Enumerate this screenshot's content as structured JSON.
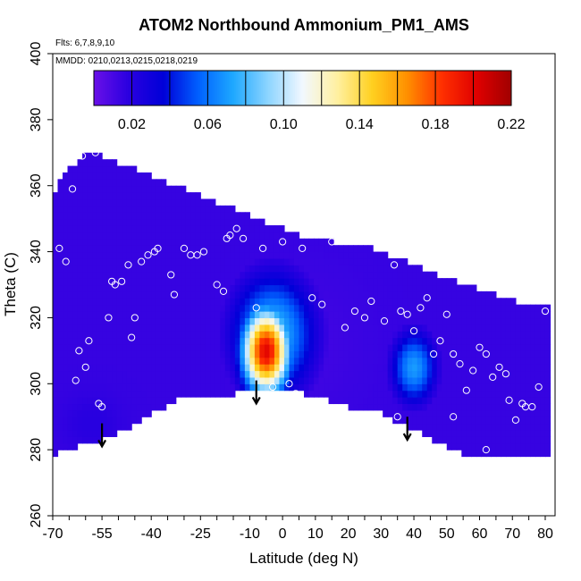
{
  "chart_data": {
    "type": "heatmap",
    "title": "ATOM2 Northbound Ammonium_PM1_AMS",
    "flights_note": "Flts: 6,7,8,9,10",
    "dates_note": "MMDD: 0210,0213,0215,0218,0219",
    "xlabel": "Latitude (deg N)",
    "ylabel": "Theta (C)",
    "xlim": [
      -70,
      83
    ],
    "ylim": [
      260,
      400
    ],
    "x_tick_labels": [
      -70,
      -55,
      -40,
      -25,
      -10,
      0,
      10,
      20,
      30,
      40,
      50,
      60,
      70,
      80
    ],
    "x_minor_ticks": [
      -70,
      -65,
      -60,
      -55,
      -50,
      -45,
      -40,
      -35,
      -30,
      -25,
      -20,
      -15,
      -10,
      -5,
      0,
      5,
      10,
      15,
      20,
      25,
      30,
      35,
      40,
      45,
      50,
      55,
      60,
      65,
      70,
      75,
      80
    ],
    "y_ticks": [
      260,
      280,
      300,
      320,
      340,
      360,
      380,
      400
    ],
    "colorbar": {
      "range": [
        0.0,
        0.22
      ],
      "tick_values": [
        0.02,
        0.06,
        0.1,
        0.14,
        0.18,
        0.22
      ],
      "tick_labels": [
        "0.02",
        "0.06",
        "0.10",
        "0.14",
        "0.18",
        "0.22"
      ],
      "colors": [
        "#6a10e8",
        "#2a00e0",
        "#0000d8",
        "#0060ff",
        "#1ea8ff",
        "#8cd4ff",
        "#f2f8ff",
        "#fff0a0",
        "#ffd020",
        "#ff9000",
        "#ff3000",
        "#e00000",
        "#a00000"
      ]
    },
    "background_value": 0.015,
    "base_surface": {
      "lat": [
        -72,
        -66,
        -52,
        -38,
        -30,
        -20,
        -10,
        0,
        10,
        20,
        30,
        42,
        50,
        56,
        80
      ],
      "theta": [
        277,
        280,
        284,
        292,
        296,
        296,
        298,
        299,
        296,
        293,
        291,
        285,
        281,
        278,
        278
      ]
    },
    "top_surface": {
      "lat": [
        -72,
        -68,
        -60,
        -55,
        -45,
        -35,
        -25,
        -15,
        -5,
        5,
        15,
        25,
        35,
        45,
        55,
        65,
        75,
        82
      ],
      "theta": [
        348,
        362,
        370,
        369,
        365,
        361,
        357,
        353,
        349,
        345,
        343,
        342,
        338,
        334,
        330,
        327,
        324,
        323
      ]
    },
    "features": [
      {
        "name": "high ammonium plume",
        "lat_range": [
          -12,
          8
        ],
        "theta_range": [
          296,
          328
        ],
        "peak": 0.2
      },
      {
        "name": "plume edge",
        "lat_range": [
          -18,
          12
        ],
        "theta_range": [
          294,
          332
        ],
        "value": 0.08
      },
      {
        "name": "low layer",
        "lat_range": [
          -10,
          30
        ],
        "theta_range": [
          288,
          335
        ],
        "value": 0.02
      },
      {
        "name": "northern pocket",
        "lat_range": [
          32,
          48
        ],
        "theta_range": [
          292,
          318
        ],
        "value": 0.07
      },
      {
        "name": "southern low",
        "lat_range": [
          -66,
          -45
        ],
        "theta_range": [
          280,
          296
        ],
        "value": 0.03
      }
    ],
    "observations": [
      {
        "lat": -68,
        "theta": 341
      },
      {
        "lat": -66,
        "theta": 337
      },
      {
        "lat": -64,
        "theta": 359
      },
      {
        "lat": -63,
        "theta": 301
      },
      {
        "lat": -62,
        "theta": 310
      },
      {
        "lat": -61,
        "theta": 369
      },
      {
        "lat": -60,
        "theta": 305
      },
      {
        "lat": -59,
        "theta": 313
      },
      {
        "lat": -57,
        "theta": 370
      },
      {
        "lat": -56,
        "theta": 294
      },
      {
        "lat": -55,
        "theta": 293
      },
      {
        "lat": -53,
        "theta": 320
      },
      {
        "lat": -52,
        "theta": 331
      },
      {
        "lat": -51,
        "theta": 330
      },
      {
        "lat": -49,
        "theta": 331
      },
      {
        "lat": -47,
        "theta": 336
      },
      {
        "lat": -46,
        "theta": 314
      },
      {
        "lat": -45,
        "theta": 320
      },
      {
        "lat": -43,
        "theta": 337
      },
      {
        "lat": -41,
        "theta": 339
      },
      {
        "lat": -39,
        "theta": 340
      },
      {
        "lat": -38,
        "theta": 341
      },
      {
        "lat": -34,
        "theta": 333
      },
      {
        "lat": -33,
        "theta": 327
      },
      {
        "lat": -30,
        "theta": 341
      },
      {
        "lat": -28,
        "theta": 339
      },
      {
        "lat": -26,
        "theta": 339
      },
      {
        "lat": -24,
        "theta": 340
      },
      {
        "lat": -20,
        "theta": 330
      },
      {
        "lat": -18,
        "theta": 328
      },
      {
        "lat": -17,
        "theta": 344
      },
      {
        "lat": -16,
        "theta": 345
      },
      {
        "lat": -14,
        "theta": 347
      },
      {
        "lat": -12,
        "theta": 344
      },
      {
        "lat": -9,
        "theta": 296
      },
      {
        "lat": -8,
        "theta": 323
      },
      {
        "lat": -6,
        "theta": 341
      },
      {
        "lat": -3,
        "theta": 299
      },
      {
        "lat": 0,
        "theta": 343
      },
      {
        "lat": 2,
        "theta": 300
      },
      {
        "lat": 4,
        "theta": 297
      },
      {
        "lat": 6,
        "theta": 341
      },
      {
        "lat": 9,
        "theta": 326
      },
      {
        "lat": 12,
        "theta": 324
      },
      {
        "lat": 15,
        "theta": 343
      },
      {
        "lat": 19,
        "theta": 317
      },
      {
        "lat": 21,
        "theta": 344
      },
      {
        "lat": 22,
        "theta": 322
      },
      {
        "lat": 25,
        "theta": 320
      },
      {
        "lat": 27,
        "theta": 325
      },
      {
        "lat": 29,
        "theta": 346
      },
      {
        "lat": 31,
        "theta": 319
      },
      {
        "lat": 34,
        "theta": 336
      },
      {
        "lat": 36,
        "theta": 322
      },
      {
        "lat": 38,
        "theta": 321
      },
      {
        "lat": 40,
        "theta": 316
      },
      {
        "lat": 42,
        "theta": 323
      },
      {
        "lat": 44,
        "theta": 326
      },
      {
        "lat": 46,
        "theta": 309
      },
      {
        "lat": 48,
        "theta": 313
      },
      {
        "lat": 50,
        "theta": 321
      },
      {
        "lat": 52,
        "theta": 309
      },
      {
        "lat": 54,
        "theta": 306
      },
      {
        "lat": 56,
        "theta": 298
      },
      {
        "lat": 58,
        "theta": 304
      },
      {
        "lat": 60,
        "theta": 311
      },
      {
        "lat": 62,
        "theta": 309
      },
      {
        "lat": 64,
        "theta": 302
      },
      {
        "lat": 66,
        "theta": 305
      },
      {
        "lat": 68,
        "theta": 303
      },
      {
        "lat": 69,
        "theta": 295
      },
      {
        "lat": 71,
        "theta": 289
      },
      {
        "lat": 73,
        "theta": 294
      },
      {
        "lat": 74,
        "theta": 293
      },
      {
        "lat": 76,
        "theta": 293
      },
      {
        "lat": 78,
        "theta": 299
      },
      {
        "lat": 80,
        "theta": 322
      },
      {
        "lat": 35,
        "theta": 290
      },
      {
        "lat": 52,
        "theta": 290
      },
      {
        "lat": 62,
        "theta": 280
      }
    ],
    "arrows": [
      {
        "lat": -55,
        "theta": 288
      },
      {
        "lat": -8,
        "theta": 301
      },
      {
        "lat": 38,
        "theta": 290
      }
    ],
    "grid": false,
    "legend": "colorbar top"
  }
}
